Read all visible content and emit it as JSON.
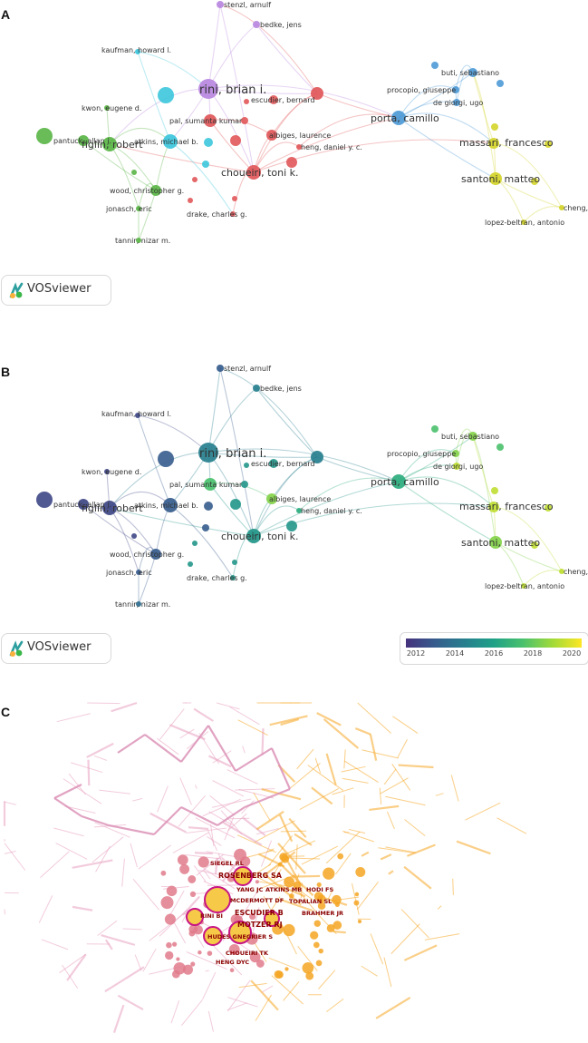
{
  "panels": {
    "a": {
      "letter": "A",
      "badge_text": "VOSviewer"
    },
    "b": {
      "letter": "B",
      "badge_text": "VOSviewer",
      "colorbar_ticks": [
        "2012",
        "2014",
        "2016",
        "2018",
        "2020"
      ]
    },
    "c": {
      "letter": "C"
    }
  },
  "colors": {
    "cluster_red": "#e15759",
    "cluster_green": "#59b545",
    "cluster_blue": "#4e9ad6",
    "cluster_yellow": "#d4d42a",
    "cluster_purple": "#b987e0",
    "cluster_cyan": "#3cc6dc",
    "citespace_pink": "#e8a1c0",
    "citespace_orange": "#f5a623",
    "citespace_label": "#8b0000"
  },
  "chart_data": [
    {
      "type": "network",
      "panel": "A",
      "nodes": [
        {
          "label": "stenzl, arnulf",
          "cluster": "purple"
        },
        {
          "label": "bedke, jens",
          "cluster": "purple"
        },
        {
          "label": "kaufman, howard l.",
          "cluster": "cyan"
        },
        {
          "label": "rini, brian i.",
          "cluster": "purple"
        },
        {
          "label": "kwon, eugene d.",
          "cluster": "green"
        },
        {
          "label": "escudier, bernard",
          "cluster": "red"
        },
        {
          "label": "pal, sumanta kumar",
          "cluster": "red"
        },
        {
          "label": "albiges, laurence",
          "cluster": "red"
        },
        {
          "label": "atkins, michael b.",
          "cluster": "cyan"
        },
        {
          "label": "pantuck, allan j.",
          "cluster": "green"
        },
        {
          "label": "figlin, robert",
          "cluster": "green"
        },
        {
          "label": "heng, daniel y. c.",
          "cluster": "red"
        },
        {
          "label": "choueiri, toni k.",
          "cluster": "red"
        },
        {
          "label": "wood, christopher g.",
          "cluster": "green"
        },
        {
          "label": "jonasch, eric",
          "cluster": "green"
        },
        {
          "label": "drake, charles g.",
          "cluster": "red"
        },
        {
          "label": "tannir, nizar m.",
          "cluster": "green"
        },
        {
          "label": "buti, sebastiano",
          "cluster": "blue"
        },
        {
          "label": "procopio, giuseppe",
          "cluster": "blue"
        },
        {
          "label": "de giorgi, ugo",
          "cluster": "blue"
        },
        {
          "label": "porta, camillo",
          "cluster": "blue"
        },
        {
          "label": "massari, francesco",
          "cluster": "yellow"
        },
        {
          "label": "santoni, matteo",
          "cluster": "yellow"
        },
        {
          "label": "cheng, liang",
          "cluster": "yellow"
        },
        {
          "label": "lopez-beltran, antonio",
          "cluster": "yellow"
        }
      ]
    },
    {
      "type": "network",
      "panel": "B",
      "colorbar": {
        "min": 2011,
        "max": 2021,
        "ticks": [
          2012,
          2014,
          2016,
          2018,
          2020
        ]
      },
      "nodes": [
        {
          "label": "stenzl, arnulf",
          "year": 2013
        },
        {
          "label": "bedke, jens",
          "year": 2015
        },
        {
          "label": "kaufman, howard l.",
          "year": 2012
        },
        {
          "label": "rini, brian i.",
          "year": 2015
        },
        {
          "label": "kwon, eugene d.",
          "year": 2012
        },
        {
          "label": "escudier, bernard",
          "year": 2015
        },
        {
          "label": "pal, sumanta kumar",
          "year": 2018
        },
        {
          "label": "albiges, laurence",
          "year": 2019
        },
        {
          "label": "atkins, michael b.",
          "year": 2013
        },
        {
          "label": "pantuck, allan j.",
          "year": 2012
        },
        {
          "label": "figlin, robert",
          "year": 2012
        },
        {
          "label": "heng, daniel y. c.",
          "year": 2017
        },
        {
          "label": "choueiri, toni k.",
          "year": 2016
        },
        {
          "label": "wood, christopher g.",
          "year": 2013
        },
        {
          "label": "jonasch, eric",
          "year": 2013
        },
        {
          "label": "drake, charles g.",
          "year": 2016
        },
        {
          "label": "tannir, nizar m.",
          "year": 2014
        },
        {
          "label": "buti, sebastiano",
          "year": 2019
        },
        {
          "label": "procopio, giuseppe",
          "year": 2019
        },
        {
          "label": "de giorgi, ugo",
          "year": 2020
        },
        {
          "label": "porta, camillo",
          "year": 2017
        },
        {
          "label": "massari, francesco",
          "year": 2020
        },
        {
          "label": "santoni, matteo",
          "year": 2019
        },
        {
          "label": "cheng, liang",
          "year": 2020
        },
        {
          "label": "lopez-beltran, antonio",
          "year": 2020
        }
      ]
    },
    {
      "type": "network",
      "panel": "C",
      "labels": [
        "SIEGEL RL",
        "ROSENBERG SA",
        "YANG JC",
        "ATKINS MB",
        "HODI FS",
        "MCDERMOTT DF",
        "TOPALIAN SL",
        "BRAHMER JR",
        "RINI BI",
        "ESCUDIER B",
        "MOTZER RJ",
        "HUDES G",
        "NEGRIER S",
        "CHOUEIRI TK",
        "HENG DYC"
      ]
    }
  ]
}
